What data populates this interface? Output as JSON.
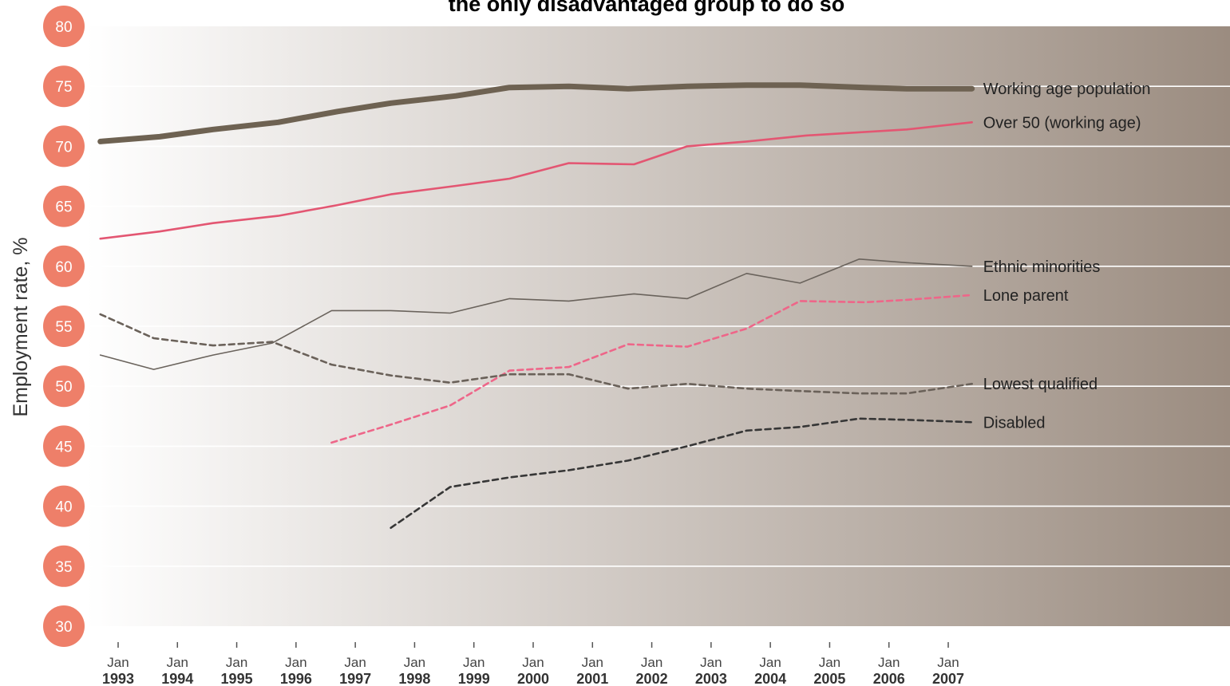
{
  "chart_data": {
    "type": "line",
    "title": "the only disadvantaged group to do so",
    "ylabel": "Employment rate, %",
    "ylim": [
      30,
      80
    ],
    "yticks": [
      80,
      75,
      70,
      65,
      60,
      55,
      50,
      45,
      40,
      35,
      30
    ],
    "grid": true,
    "categories": [
      {
        "month": "Jan",
        "year": "1993"
      },
      {
        "month": "Jan",
        "year": "1994"
      },
      {
        "month": "Jan",
        "year": "1995"
      },
      {
        "month": "Jan",
        "year": "1996"
      },
      {
        "month": "Jan",
        "year": "1997"
      },
      {
        "month": "Jan",
        "year": "1998"
      },
      {
        "month": "Jan",
        "year": "1999"
      },
      {
        "month": "Jan",
        "year": "2000"
      },
      {
        "month": "Jan",
        "year": "2001"
      },
      {
        "month": "Jan",
        "year": "2002"
      },
      {
        "month": "Jan",
        "year": "2003"
      },
      {
        "month": "Jan",
        "year": "2004"
      },
      {
        "month": "Jan",
        "year": "2005"
      },
      {
        "month": "Jan",
        "year": "2006"
      },
      {
        "month": "Jan",
        "year": "2007"
      }
    ],
    "series": [
      {
        "name": "Working age population",
        "color": "#6e6252",
        "style": "solid",
        "weight": "thick",
        "points": [
          [
            1992.7,
            70.4
          ],
          [
            1993.7,
            70.8
          ],
          [
            1994.6,
            71.4
          ],
          [
            1995.7,
            72.0
          ],
          [
            1996.7,
            72.9
          ],
          [
            1997.6,
            73.6
          ],
          [
            1998.7,
            74.2
          ],
          [
            1999.6,
            74.9
          ],
          [
            2000.6,
            75.0
          ],
          [
            2001.6,
            74.8
          ],
          [
            2002.6,
            75.0
          ],
          [
            2003.6,
            75.1
          ],
          [
            2004.5,
            75.1
          ],
          [
            2005.6,
            74.9
          ],
          [
            2006.3,
            74.8
          ],
          [
            2007.4,
            74.8
          ]
        ]
      },
      {
        "name": "Over 50 (working age)",
        "color": "#e35672",
        "style": "solid",
        "weight": "medium",
        "points": [
          [
            1992.7,
            62.3
          ],
          [
            1993.7,
            62.9
          ],
          [
            1994.6,
            63.6
          ],
          [
            1995.7,
            64.2
          ],
          [
            1996.7,
            65.1
          ],
          [
            1997.6,
            66.0
          ],
          [
            1998.7,
            66.7
          ],
          [
            1999.6,
            67.3
          ],
          [
            2000.6,
            68.6
          ],
          [
            2001.7,
            68.5
          ],
          [
            2002.6,
            70.0
          ],
          [
            2003.6,
            70.4
          ],
          [
            2004.6,
            70.9
          ],
          [
            2005.6,
            71.2
          ],
          [
            2006.3,
            71.4
          ],
          [
            2007.4,
            72.0
          ]
        ]
      },
      {
        "name": "Ethnic minorities",
        "color": "#6a635c",
        "style": "solid",
        "weight": "thin",
        "points": [
          [
            1992.7,
            52.6
          ],
          [
            1993.6,
            51.4
          ],
          [
            1994.6,
            52.6
          ],
          [
            1995.6,
            53.6
          ],
          [
            1996.6,
            56.3
          ],
          [
            1997.6,
            56.3
          ],
          [
            1998.6,
            56.1
          ],
          [
            1999.6,
            57.3
          ],
          [
            2000.6,
            57.1
          ],
          [
            2001.7,
            57.7
          ],
          [
            2002.6,
            57.3
          ],
          [
            2003.6,
            59.4
          ],
          [
            2004.5,
            58.6
          ],
          [
            2005.5,
            60.6
          ],
          [
            2006.3,
            60.3
          ],
          [
            2007.4,
            60.0
          ]
        ]
      },
      {
        "name": "Lone parent",
        "color": "#ee6689",
        "style": "dashed",
        "weight": "medium",
        "points": [
          [
            1996.6,
            45.3
          ],
          [
            1997.6,
            46.8
          ],
          [
            1998.6,
            48.4
          ],
          [
            1999.6,
            51.3
          ],
          [
            2000.6,
            51.6
          ],
          [
            2001.6,
            53.5
          ],
          [
            2002.6,
            53.3
          ],
          [
            2003.6,
            54.8
          ],
          [
            2004.5,
            57.1
          ],
          [
            2005.6,
            57.0
          ],
          [
            2006.3,
            57.2
          ],
          [
            2007.4,
            57.6
          ]
        ]
      },
      {
        "name": "Lowest qualified",
        "color": "#6a6159",
        "style": "dashed",
        "weight": "medium",
        "points": [
          [
            1992.7,
            56.0
          ],
          [
            1993.6,
            54.0
          ],
          [
            1994.6,
            53.4
          ],
          [
            1995.6,
            53.7
          ],
          [
            1996.6,
            51.8
          ],
          [
            1997.6,
            50.9
          ],
          [
            1998.6,
            50.3
          ],
          [
            1999.6,
            51.0
          ],
          [
            2000.6,
            51.0
          ],
          [
            2001.6,
            49.8
          ],
          [
            2002.6,
            50.2
          ],
          [
            2003.6,
            49.8
          ],
          [
            2004.5,
            49.6
          ],
          [
            2005.5,
            49.4
          ],
          [
            2006.3,
            49.4
          ],
          [
            2007.4,
            50.2
          ]
        ]
      },
      {
        "name": "Disabled",
        "color": "#363636",
        "style": "dashed",
        "weight": "medium",
        "points": [
          [
            1997.6,
            38.2
          ],
          [
            1998.6,
            41.6
          ],
          [
            1999.6,
            42.4
          ],
          [
            2000.6,
            43.0
          ],
          [
            2001.6,
            43.8
          ],
          [
            2002.6,
            45.0
          ],
          [
            2003.6,
            46.3
          ],
          [
            2004.5,
            46.6
          ],
          [
            2005.5,
            47.3
          ],
          [
            2006.3,
            47.2
          ],
          [
            2007.4,
            47.0
          ]
        ]
      }
    ]
  },
  "colors": {
    "tick_bubble": "#ee7f69",
    "background_start": "#ffffff",
    "background_end": "#9b8c80",
    "grid": "#ffffff"
  }
}
